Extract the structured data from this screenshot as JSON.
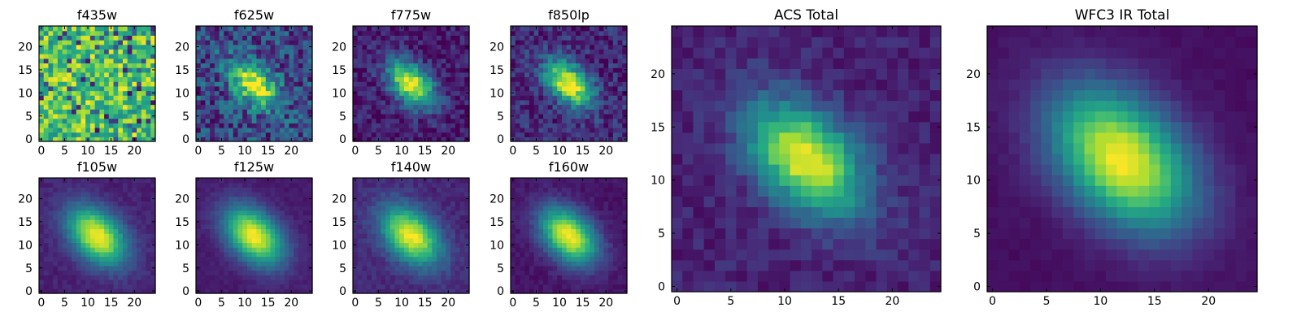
{
  "chart_data": [
    {
      "type": "heatmap",
      "title": "f435w",
      "cmap": "viridis",
      "size": 25,
      "style": "noise",
      "xticks": [
        "0",
        "5",
        "10",
        "15",
        "20"
      ],
      "yticks": [
        "0",
        "5",
        "10",
        "15",
        "20"
      ],
      "center": [
        12,
        12
      ],
      "sigma": [
        4.0,
        2.6
      ],
      "noise": 0.0
    },
    {
      "type": "heatmap",
      "title": "f625w",
      "cmap": "viridis",
      "size": 25,
      "style": "galaxy",
      "xticks": [
        "0",
        "5",
        "10",
        "15",
        "20"
      ],
      "yticks": [
        "0",
        "5",
        "10",
        "15",
        "20"
      ],
      "center": [
        12,
        12
      ],
      "sigma": [
        4.2,
        2.6
      ],
      "noise": 0.22,
      "floor": 0.22
    },
    {
      "type": "heatmap",
      "title": "f775w",
      "cmap": "viridis",
      "size": 25,
      "style": "galaxy",
      "xticks": [
        "0",
        "5",
        "10",
        "15",
        "20"
      ],
      "yticks": [
        "0",
        "5",
        "10",
        "15",
        "20"
      ],
      "center": [
        12,
        12
      ],
      "sigma": [
        4.2,
        2.6
      ],
      "noise": 0.12,
      "floor": 0.08
    },
    {
      "type": "heatmap",
      "title": "f850lp",
      "cmap": "viridis",
      "size": 25,
      "style": "galaxy",
      "xticks": [
        "0",
        "5",
        "10",
        "15",
        "20"
      ],
      "yticks": [
        "0",
        "5",
        "10",
        "15",
        "20"
      ],
      "center": [
        12,
        12
      ],
      "sigma": [
        4.2,
        2.6
      ],
      "noise": 0.14,
      "floor": 0.12
    },
    {
      "type": "heatmap",
      "title": "f105w",
      "cmap": "viridis",
      "size": 25,
      "style": "galaxy",
      "xticks": [
        "0",
        "5",
        "10",
        "15",
        "20"
      ],
      "yticks": [
        "0",
        "5",
        "10",
        "15",
        "20"
      ],
      "center": [
        12,
        12
      ],
      "sigma": [
        5.2,
        3.4
      ],
      "noise": 0.04,
      "floor": 0.1
    },
    {
      "type": "heatmap",
      "title": "f125w",
      "cmap": "viridis",
      "size": 25,
      "style": "galaxy",
      "xticks": [
        "0",
        "5",
        "10",
        "15",
        "20"
      ],
      "yticks": [
        "0",
        "5",
        "10",
        "15",
        "20"
      ],
      "center": [
        12,
        12
      ],
      "sigma": [
        5.2,
        3.4
      ],
      "noise": 0.03,
      "floor": 0.08
    },
    {
      "type": "heatmap",
      "title": "f140w",
      "cmap": "viridis",
      "size": 25,
      "style": "galaxy",
      "xticks": [
        "0",
        "5",
        "10",
        "15",
        "20"
      ],
      "yticks": [
        "0",
        "5",
        "10",
        "15",
        "20"
      ],
      "center": [
        12,
        12
      ],
      "sigma": [
        5.2,
        3.4
      ],
      "noise": 0.05,
      "floor": 0.12
    },
    {
      "type": "heatmap",
      "title": "f160w",
      "cmap": "viridis",
      "size": 25,
      "style": "galaxy",
      "xticks": [
        "0",
        "5",
        "10",
        "15",
        "20"
      ],
      "yticks": [
        "0",
        "5",
        "10",
        "15",
        "20"
      ],
      "center": [
        12,
        12
      ],
      "sigma": [
        5.0,
        3.3
      ],
      "noise": 0.04,
      "floor": 0.06
    },
    {
      "type": "heatmap",
      "title": "ACS Total",
      "cmap": "viridis",
      "size": 25,
      "style": "galaxy",
      "xticks": [
        "0",
        "5",
        "10",
        "15",
        "20"
      ],
      "yticks": [
        "0",
        "5",
        "10",
        "15",
        "20"
      ],
      "center": [
        12,
        12
      ],
      "sigma": [
        4.4,
        2.8
      ],
      "noise": 0.07,
      "floor": 0.1
    },
    {
      "type": "heatmap",
      "title": "WFC3 IR Total",
      "cmap": "viridis",
      "size": 25,
      "style": "galaxy",
      "xticks": [
        "0",
        "5",
        "10",
        "15",
        "20"
      ],
      "yticks": [
        "0",
        "5",
        "10",
        "15",
        "20"
      ],
      "center": [
        12,
        12
      ],
      "sigma": [
        5.4,
        3.6
      ],
      "noise": 0.02,
      "floor": 0.04
    }
  ]
}
